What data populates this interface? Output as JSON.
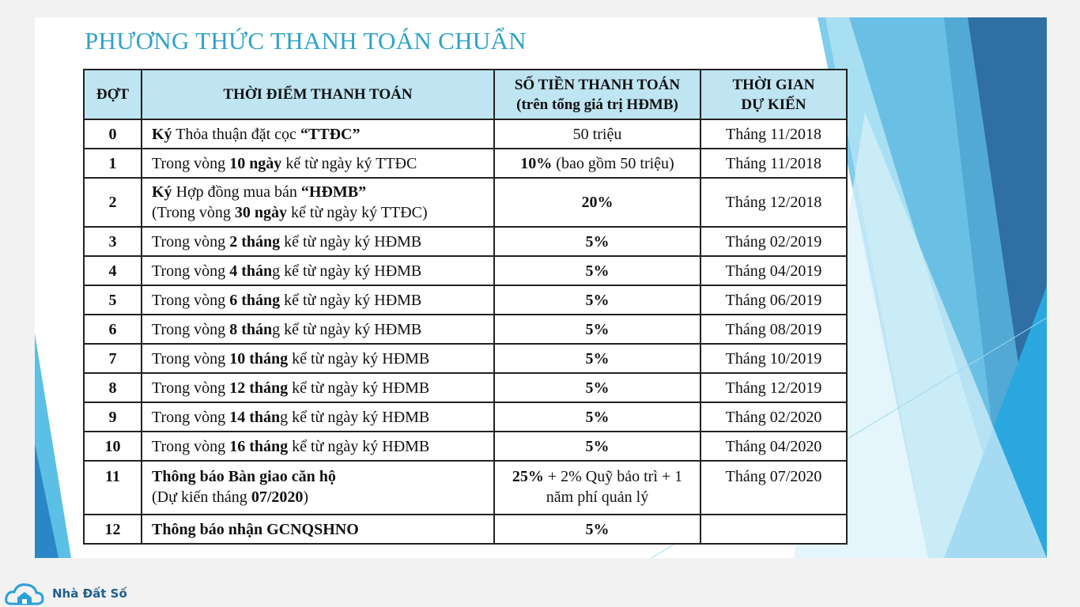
{
  "header": {
    "title": "PHƯƠNG THỨC THANH TOÁN CHUẨN"
  },
  "table": {
    "columns": [
      [
        "ĐỢT"
      ],
      [
        "THỜI ĐIỂM THANH TOÁN"
      ],
      [
        "SỐ TIỀN THANH TOÁN",
        "(trên tổng giá trị HĐMB)"
      ],
      [
        "THỜI GIAN",
        "DỰ KIẾN"
      ]
    ],
    "rows": [
      [
        [
          [
            {
              "bold": "0"
            }
          ]
        ],
        [
          [
            {
              "bold": "Ký"
            },
            " Thỏa thuận đặt cọc ",
            {
              "bold": "“TTĐC”"
            }
          ]
        ],
        [
          [
            "50 triệu"
          ]
        ],
        [
          [
            "Tháng 11/2018"
          ]
        ]
      ],
      [
        [
          [
            {
              "bold": "1"
            }
          ]
        ],
        [
          [
            "Trong vòng ",
            {
              "bold": "10 ngày"
            },
            " kể từ ngày ký TTĐC"
          ]
        ],
        [
          [
            {
              "bold": "10%"
            },
            " (bao gồm 50 triệu)"
          ]
        ],
        [
          [
            "Tháng 11/2018"
          ]
        ]
      ],
      [
        [
          [
            {
              "bold": "2"
            }
          ]
        ],
        [
          [
            {
              "bold": "Ký"
            },
            " Hợp đồng mua bán ",
            {
              "bold": "“HĐMB”"
            }
          ],
          [
            "(Trong vòng ",
            {
              "bold": "30 ngày"
            },
            " kể từ ngày ký TTĐC)"
          ]
        ],
        [
          [
            {
              "bold": "20%"
            }
          ]
        ],
        [
          [
            "Tháng 12/2018"
          ]
        ]
      ],
      [
        [
          [
            {
              "bold": "3"
            }
          ]
        ],
        [
          [
            "Trong vòng ",
            {
              "bold": "2 tháng"
            },
            " kể từ ngày ký HĐMB"
          ]
        ],
        [
          [
            {
              "bold": "5%"
            }
          ]
        ],
        [
          [
            "Tháng 02/2019"
          ]
        ]
      ],
      [
        [
          [
            {
              "bold": "4"
            }
          ]
        ],
        [
          [
            "Trong vòng ",
            {
              "bold": "4 thán"
            },
            "g kể từ ngày ký HĐMB"
          ]
        ],
        [
          [
            {
              "bold": "5%"
            }
          ]
        ],
        [
          [
            "Tháng 04/2019"
          ]
        ]
      ],
      [
        [
          [
            {
              "bold": "5"
            }
          ]
        ],
        [
          [
            "Trong vòng ",
            {
              "bold": "6 tháng"
            },
            " kể từ ngày ký HĐMB"
          ]
        ],
        [
          [
            {
              "bold": "5%"
            }
          ]
        ],
        [
          [
            "Tháng 06/2019"
          ]
        ]
      ],
      [
        [
          [
            {
              "bold": "6"
            }
          ]
        ],
        [
          [
            "Trong vòng ",
            {
              "bold": "8 thán"
            },
            "g kể từ ngày ký HĐMB"
          ]
        ],
        [
          [
            {
              "bold": "5%"
            }
          ]
        ],
        [
          [
            "Tháng 08/2019"
          ]
        ]
      ],
      [
        [
          [
            {
              "bold": "7"
            }
          ]
        ],
        [
          [
            "Trong vòng ",
            {
              "bold": "10 tháng"
            },
            " kể từ ngày ký HĐMB"
          ]
        ],
        [
          [
            {
              "bold": "5%"
            }
          ]
        ],
        [
          [
            "Tháng 10/2019"
          ]
        ]
      ],
      [
        [
          [
            {
              "bold": "8"
            }
          ]
        ],
        [
          [
            "Trong vòng ",
            {
              "bold": "12 tháng"
            },
            " kể từ ngày ký HĐMB"
          ]
        ],
        [
          [
            {
              "bold": "5%"
            }
          ]
        ],
        [
          [
            "Tháng 12/2019"
          ]
        ]
      ],
      [
        [
          [
            {
              "bold": "9"
            }
          ]
        ],
        [
          [
            "Trong vòng ",
            {
              "bold": "14 thán"
            },
            "g kể từ ngày ký HĐMB"
          ]
        ],
        [
          [
            {
              "bold": "5%"
            }
          ]
        ],
        [
          [
            "Tháng 02/2020"
          ]
        ]
      ],
      [
        [
          [
            {
              "bold": "10"
            }
          ]
        ],
        [
          [
            "Trong vòng ",
            {
              "bold": "16 tháng"
            },
            " kể từ ngày ký HĐMB"
          ]
        ],
        [
          [
            {
              "bold": "5%"
            }
          ]
        ],
        [
          [
            "Tháng 04/2020"
          ]
        ]
      ],
      [
        [
          [
            {
              "bold": "11"
            }
          ]
        ],
        [
          [
            {
              "bold": "Thông báo Bàn giao căn hộ"
            }
          ],
          [
            "(Dự kiến tháng ",
            {
              "bold": "07/2020"
            },
            ")"
          ]
        ],
        [
          [
            {
              "bold": "25%"
            },
            " + 2% Quỹ bảo trì + 1"
          ],
          [
            "năm phí quản lý"
          ]
        ],
        [
          [
            "Tháng 07/2020"
          ]
        ]
      ],
      [
        [
          [
            {
              "bold": "12"
            }
          ]
        ],
        [
          [
            {
              "bold": "Thông báo nhận GCNQSHNO"
            }
          ]
        ],
        [
          [
            {
              "bold": "5%"
            }
          ]
        ],
        []
      ]
    ]
  },
  "logo": {
    "text": "Nhà Đất Số"
  }
}
